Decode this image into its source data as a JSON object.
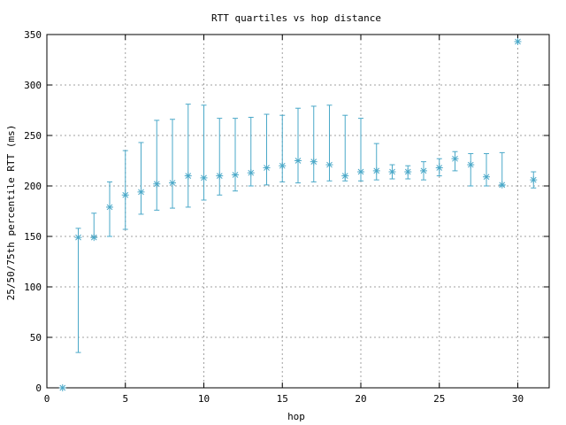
{
  "chart_data": {
    "type": "scatter",
    "title": "RTT quartiles vs hop distance",
    "xlabel": "hop",
    "ylabel": "25/50/75th percentile RTT (ms)",
    "xlim": [
      0,
      32
    ],
    "ylim": [
      0,
      350
    ],
    "xticks": [
      0,
      5,
      10,
      15,
      20,
      25,
      30
    ],
    "yticks": [
      0,
      50,
      100,
      150,
      200,
      250,
      300,
      350
    ],
    "grid": true,
    "legend": "none",
    "color": "#4aa8c8",
    "points": [
      {
        "x": 1,
        "p25": 0,
        "median": 0,
        "p75": 0
      },
      {
        "x": 2,
        "p25": 35,
        "median": 149,
        "p75": 158
      },
      {
        "x": 3,
        "p25": 149,
        "median": 149,
        "p75": 173
      },
      {
        "x": 4,
        "p25": 150,
        "median": 179,
        "p75": 204
      },
      {
        "x": 5,
        "p25": 157,
        "median": 191,
        "p75": 235
      },
      {
        "x": 6,
        "p25": 172,
        "median": 194,
        "p75": 243
      },
      {
        "x": 7,
        "p25": 176,
        "median": 202,
        "p75": 265
      },
      {
        "x": 8,
        "p25": 178,
        "median": 203,
        "p75": 266
      },
      {
        "x": 9,
        "p25": 179,
        "median": 210,
        "p75": 281
      },
      {
        "x": 10,
        "p25": 186,
        "median": 208,
        "p75": 280
      },
      {
        "x": 11,
        "p25": 191,
        "median": 210,
        "p75": 267
      },
      {
        "x": 12,
        "p25": 195,
        "median": 211,
        "p75": 267
      },
      {
        "x": 13,
        "p25": 200,
        "median": 213,
        "p75": 268
      },
      {
        "x": 14,
        "p25": 201,
        "median": 218,
        "p75": 271
      },
      {
        "x": 15,
        "p25": 204,
        "median": 220,
        "p75": 270
      },
      {
        "x": 16,
        "p25": 203,
        "median": 225,
        "p75": 277
      },
      {
        "x": 17,
        "p25": 204,
        "median": 224,
        "p75": 279
      },
      {
        "x": 18,
        "p25": 205,
        "median": 221,
        "p75": 280
      },
      {
        "x": 19,
        "p25": 205,
        "median": 210,
        "p75": 270
      },
      {
        "x": 20,
        "p25": 205,
        "median": 214,
        "p75": 267
      },
      {
        "x": 21,
        "p25": 206,
        "median": 215,
        "p75": 242
      },
      {
        "x": 22,
        "p25": 207,
        "median": 214,
        "p75": 221
      },
      {
        "x": 23,
        "p25": 207,
        "median": 214,
        "p75": 220
      },
      {
        "x": 24,
        "p25": 206,
        "median": 215,
        "p75": 224
      },
      {
        "x": 25,
        "p25": 210,
        "median": 218,
        "p75": 227
      },
      {
        "x": 26,
        "p25": 215,
        "median": 227,
        "p75": 234
      },
      {
        "x": 27,
        "p25": 200,
        "median": 221,
        "p75": 232
      },
      {
        "x": 28,
        "p25": 200,
        "median": 209,
        "p75": 232
      },
      {
        "x": 29,
        "p25": 200,
        "median": 201,
        "p75": 233
      },
      {
        "x": 30,
        "p25": 343,
        "median": 343,
        "p75": 343
      },
      {
        "x": 31,
        "p25": 198,
        "median": 206,
        "p75": 214
      }
    ]
  }
}
